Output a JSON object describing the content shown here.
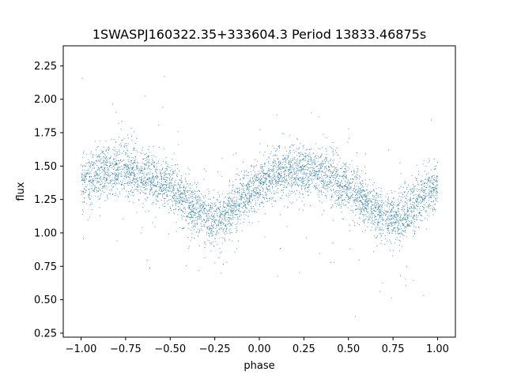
{
  "chart_data": {
    "type": "scatter",
    "title": "1SWASPJ160322.35+333604.3 Period 13833.46875s",
    "xlabel": "phase",
    "ylabel": "flux",
    "xlim": [
      -1.1,
      1.1
    ],
    "ylim": [
      0.22,
      2.4
    ],
    "x_ticks": [
      -1.0,
      -0.75,
      -0.5,
      -0.25,
      0.0,
      0.25,
      0.5,
      0.75,
      1.0
    ],
    "x_tick_labels": [
      "−1.00",
      "−0.75",
      "−0.50",
      "−0.25",
      "0.00",
      "0.25",
      "0.50",
      "0.75",
      "1.00"
    ],
    "y_ticks": [
      0.25,
      0.5,
      0.75,
      1.0,
      1.25,
      1.5,
      1.75,
      2.0,
      2.25
    ],
    "y_tick_labels": [
      "0.25",
      "0.50",
      "0.75",
      "1.00",
      "1.25",
      "1.50",
      "1.75",
      "2.00",
      "2.25"
    ],
    "grid": false,
    "point_color": "#1f77b4",
    "series": [
      {
        "x": [
          -1.0,
          -0.95,
          -0.9,
          -0.85,
          -0.8,
          -0.75,
          -0.7,
          -0.65,
          -0.6,
          -0.55,
          -0.5,
          -0.45,
          -0.4,
          -0.35,
          -0.3,
          -0.25,
          -0.2,
          -0.15,
          -0.1,
          -0.05,
          0.0,
          0.05,
          0.1,
          0.15,
          0.2,
          0.25,
          0.3,
          0.35,
          0.4,
          0.45,
          0.5,
          0.55,
          0.6,
          0.65,
          0.7,
          0.75,
          0.8,
          0.85,
          0.9,
          0.95,
          1.0
        ],
        "y": [
          1.37,
          1.41,
          1.44,
          1.46,
          1.47,
          1.47,
          1.46,
          1.44,
          1.41,
          1.38,
          1.34,
          1.29,
          1.23,
          1.17,
          1.12,
          1.09,
          1.12,
          1.18,
          1.25,
          1.31,
          1.36,
          1.4,
          1.44,
          1.46,
          1.47,
          1.47,
          1.46,
          1.44,
          1.41,
          1.38,
          1.34,
          1.29,
          1.23,
          1.17,
          1.12,
          1.09,
          1.12,
          1.18,
          1.25,
          1.31,
          1.36
        ]
      }
    ]
  }
}
